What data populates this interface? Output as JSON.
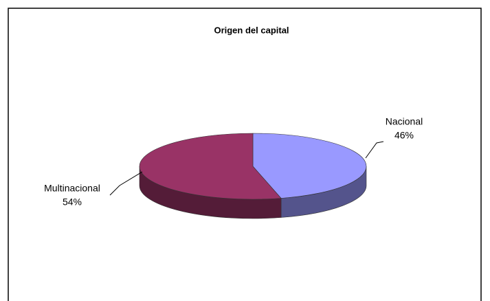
{
  "chart_data": {
    "type": "pie",
    "title": "Origen del capital",
    "categories": [
      "Nacional",
      "Multinacional"
    ],
    "values": [
      46,
      54
    ],
    "value_labels": [
      "46%",
      "54%"
    ],
    "colors": [
      "#9999ff",
      "#993366"
    ]
  }
}
